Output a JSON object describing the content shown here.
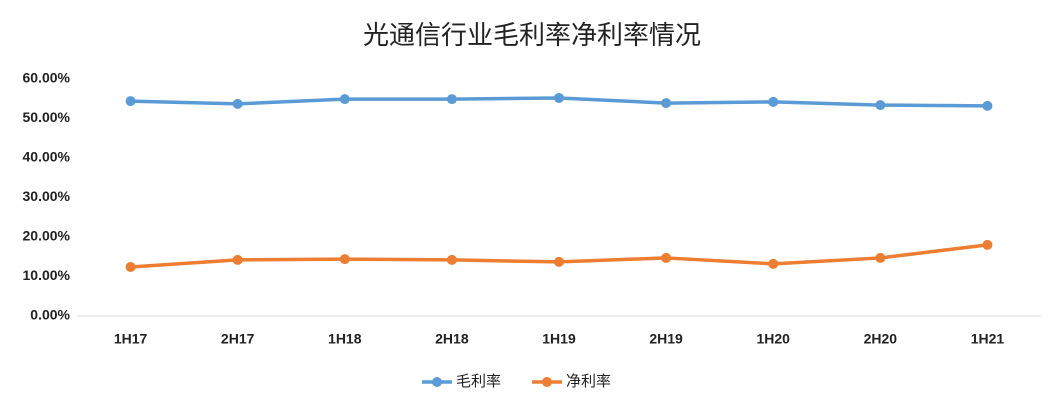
{
  "chart_data": {
    "type": "line",
    "title": "光通信行业毛利率净利率情况",
    "categories": [
      "1H17",
      "2H17",
      "1H18",
      "2H18",
      "1H19",
      "2H19",
      "1H20",
      "2H20",
      "1H21"
    ],
    "series": [
      {
        "name": "毛利率",
        "color": "#5b9bd5",
        "values": [
          54.4,
          53.7,
          54.9,
          54.9,
          55.2,
          53.9,
          54.2,
          53.4,
          53.2
        ]
      },
      {
        "name": "净利率",
        "color": "#ed7d31",
        "values": [
          12.4,
          14.2,
          14.4,
          14.2,
          13.7,
          14.7,
          13.2,
          14.7,
          18.0
        ]
      }
    ],
    "ylim": [
      0,
      60
    ],
    "yticks": [
      {
        "value": 0,
        "label": "0.00%"
      },
      {
        "value": 10,
        "label": "10.00%"
      },
      {
        "value": 20,
        "label": "20.00%"
      },
      {
        "value": 30,
        "label": "30.00%"
      },
      {
        "value": 40,
        "label": "40.00%"
      },
      {
        "value": 50,
        "label": "50.00%"
      },
      {
        "value": 60,
        "label": "60.00%"
      }
    ],
    "grid": false,
    "legend": "bottom"
  }
}
